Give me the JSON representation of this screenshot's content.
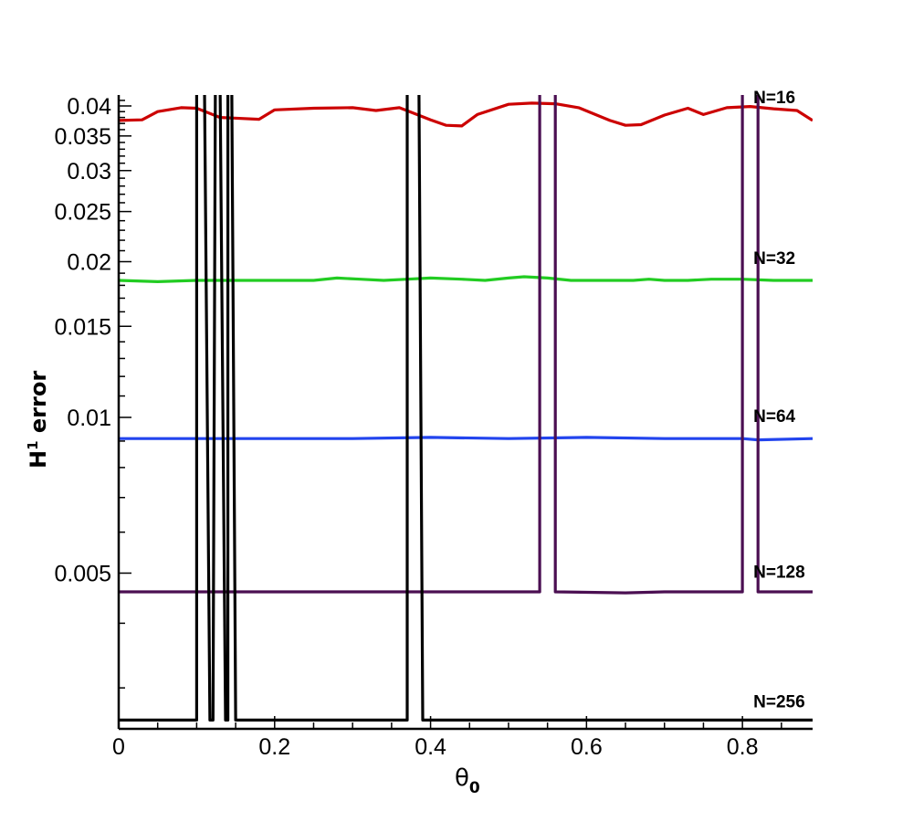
{
  "chart_data": {
    "type": "line",
    "xlabel_main": "θ",
    "xlabel_sub": "0",
    "ylabel_main": "H",
    "ylabel_sup": "1",
    "ylabel_rest": " error",
    "y_scale": "log",
    "xlim": [
      0,
      0.89
    ],
    "ylim": [
      0.0025,
      0.042
    ],
    "x_ticks": [
      {
        "value": 0,
        "label": "0"
      },
      {
        "value": 0.2,
        "label": "0.2"
      },
      {
        "value": 0.4,
        "label": "0.4"
      },
      {
        "value": 0.6,
        "label": "0.6"
      },
      {
        "value": 0.8,
        "label": "0.8"
      }
    ],
    "y_ticks": [
      {
        "value": 0.005,
        "label": "0.005"
      },
      {
        "value": 0.01,
        "label": "0.01"
      },
      {
        "value": 0.015,
        "label": "0.015"
      },
      {
        "value": 0.02,
        "label": "0.02"
      },
      {
        "value": 0.025,
        "label": "0.025"
      },
      {
        "value": 0.03,
        "label": "0.03"
      },
      {
        "value": 0.035,
        "label": "0.035"
      },
      {
        "value": 0.04,
        "label": "0.04"
      }
    ],
    "grid": false,
    "series": [
      {
        "name": "N=16",
        "color": "#cc0000",
        "points": [
          [
            0,
            0.0375
          ],
          [
            0.03,
            0.0376
          ],
          [
            0.05,
            0.039
          ],
          [
            0.08,
            0.0397
          ],
          [
            0.1,
            0.0396
          ],
          [
            0.13,
            0.038
          ],
          [
            0.18,
            0.0377
          ],
          [
            0.2,
            0.0393
          ],
          [
            0.25,
            0.0396
          ],
          [
            0.3,
            0.0397
          ],
          [
            0.33,
            0.0392
          ],
          [
            0.36,
            0.0397
          ],
          [
            0.4,
            0.0376
          ],
          [
            0.42,
            0.0367
          ],
          [
            0.44,
            0.0366
          ],
          [
            0.46,
            0.0385
          ],
          [
            0.5,
            0.0403
          ],
          [
            0.53,
            0.0405
          ],
          [
            0.56,
            0.0404
          ],
          [
            0.59,
            0.0397
          ],
          [
            0.63,
            0.0375
          ],
          [
            0.65,
            0.0367
          ],
          [
            0.67,
            0.0368
          ],
          [
            0.7,
            0.0384
          ],
          [
            0.73,
            0.0396
          ],
          [
            0.75,
            0.0385
          ],
          [
            0.78,
            0.0397
          ],
          [
            0.81,
            0.0399
          ],
          [
            0.84,
            0.0395
          ],
          [
            0.87,
            0.0392
          ],
          [
            0.89,
            0.0375
          ]
        ]
      },
      {
        "name": "N=32",
        "color": "#22cc22",
        "points": [
          [
            0,
            0.0184
          ],
          [
            0.05,
            0.0183
          ],
          [
            0.1,
            0.0184
          ],
          [
            0.15,
            0.0184
          ],
          [
            0.2,
            0.0184
          ],
          [
            0.25,
            0.0184
          ],
          [
            0.28,
            0.0186
          ],
          [
            0.31,
            0.0185
          ],
          [
            0.34,
            0.0184
          ],
          [
            0.37,
            0.0185
          ],
          [
            0.4,
            0.0186
          ],
          [
            0.44,
            0.0185
          ],
          [
            0.47,
            0.0184
          ],
          [
            0.5,
            0.0186
          ],
          [
            0.52,
            0.0187
          ],
          [
            0.55,
            0.0186
          ],
          [
            0.58,
            0.0184
          ],
          [
            0.62,
            0.0184
          ],
          [
            0.66,
            0.0184
          ],
          [
            0.68,
            0.0185
          ],
          [
            0.7,
            0.0184
          ],
          [
            0.73,
            0.0184
          ],
          [
            0.76,
            0.0185
          ],
          [
            0.8,
            0.0185
          ],
          [
            0.84,
            0.0184
          ],
          [
            0.89,
            0.0184
          ]
        ]
      },
      {
        "name": "N=64",
        "color": "#2244ee",
        "points": [
          [
            0,
            0.0091
          ],
          [
            0.1,
            0.0091
          ],
          [
            0.2,
            0.0091
          ],
          [
            0.3,
            0.0091
          ],
          [
            0.4,
            0.00915
          ],
          [
            0.5,
            0.0091
          ],
          [
            0.6,
            0.00915
          ],
          [
            0.7,
            0.0091
          ],
          [
            0.8,
            0.0091
          ],
          [
            0.82,
            0.00905
          ],
          [
            0.89,
            0.0091
          ]
        ]
      },
      {
        "name": "N=128",
        "color": "#4b0f52",
        "points": [
          [
            0,
            0.0046
          ],
          [
            0.54,
            0.0046
          ],
          [
            0.54,
            0.045
          ],
          [
            0.56,
            0.045
          ],
          [
            0.56,
            0.0046
          ],
          [
            0.65,
            0.00458
          ],
          [
            0.7,
            0.0046
          ],
          [
            0.8,
            0.0046
          ],
          [
            0.8,
            0.045
          ],
          [
            0.82,
            0.045
          ],
          [
            0.82,
            0.0046
          ],
          [
            0.89,
            0.0046
          ]
        ]
      },
      {
        "name": "N=256",
        "color": "#000000",
        "points": [
          [
            0,
            0.0026
          ],
          [
            0.1,
            0.0026
          ],
          [
            0.1,
            0.045
          ],
          [
            0.11,
            0.045
          ],
          [
            0.117,
            0.0026
          ],
          [
            0.121,
            0.0026
          ],
          [
            0.124,
            0.045
          ],
          [
            0.13,
            0.045
          ],
          [
            0.137,
            0.0026
          ],
          [
            0.14,
            0.0026
          ],
          [
            0.14,
            0.045
          ],
          [
            0.145,
            0.045
          ],
          [
            0.15,
            0.0026
          ],
          [
            0.37,
            0.0026
          ],
          [
            0.37,
            0.045
          ],
          [
            0.375,
            0.045
          ],
          [
            0.385,
            0.045
          ],
          [
            0.39,
            0.0026
          ],
          [
            0.89,
            0.0026
          ]
        ]
      }
    ],
    "annotations": [
      {
        "text": "N=16",
        "x": 0.67,
        "y": 0.0405
      },
      {
        "text": "N=32",
        "x": 0.67,
        "y": 0.0198
      },
      {
        "text": "N=64",
        "x": 0.67,
        "y": 0.0098
      },
      {
        "text": "N=128",
        "x": 0.67,
        "y": 0.0049
      },
      {
        "text": "N=256",
        "x": 0.67,
        "y": 0.00275
      }
    ]
  }
}
